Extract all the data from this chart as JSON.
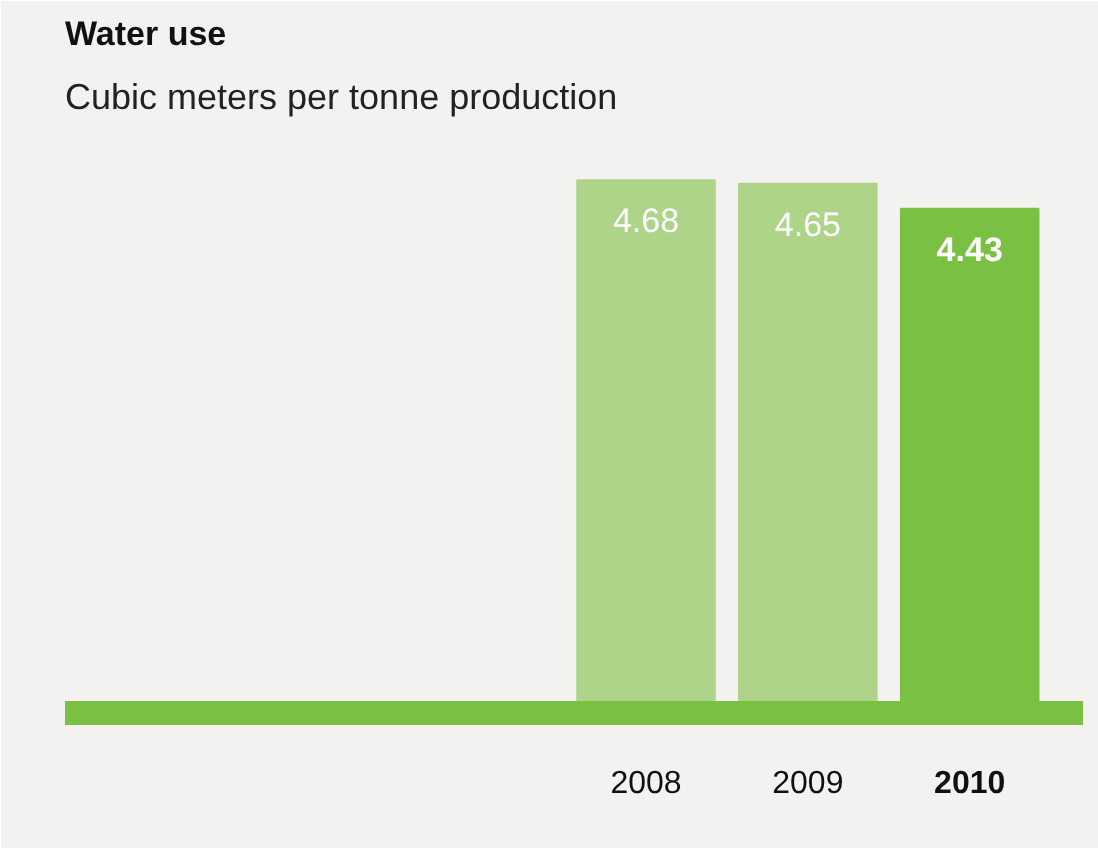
{
  "chart_data": {
    "type": "bar",
    "title": "Water use",
    "subtitle": "Cubic meters per tonne production",
    "categories": [
      "2008",
      "2009",
      "2010"
    ],
    "values": [
      4.68,
      4.65,
      4.43
    ],
    "colors": [
      "#aed48a",
      "#aed48a",
      "#7ac143"
    ],
    "data_labels": true,
    "grid": false
  }
}
